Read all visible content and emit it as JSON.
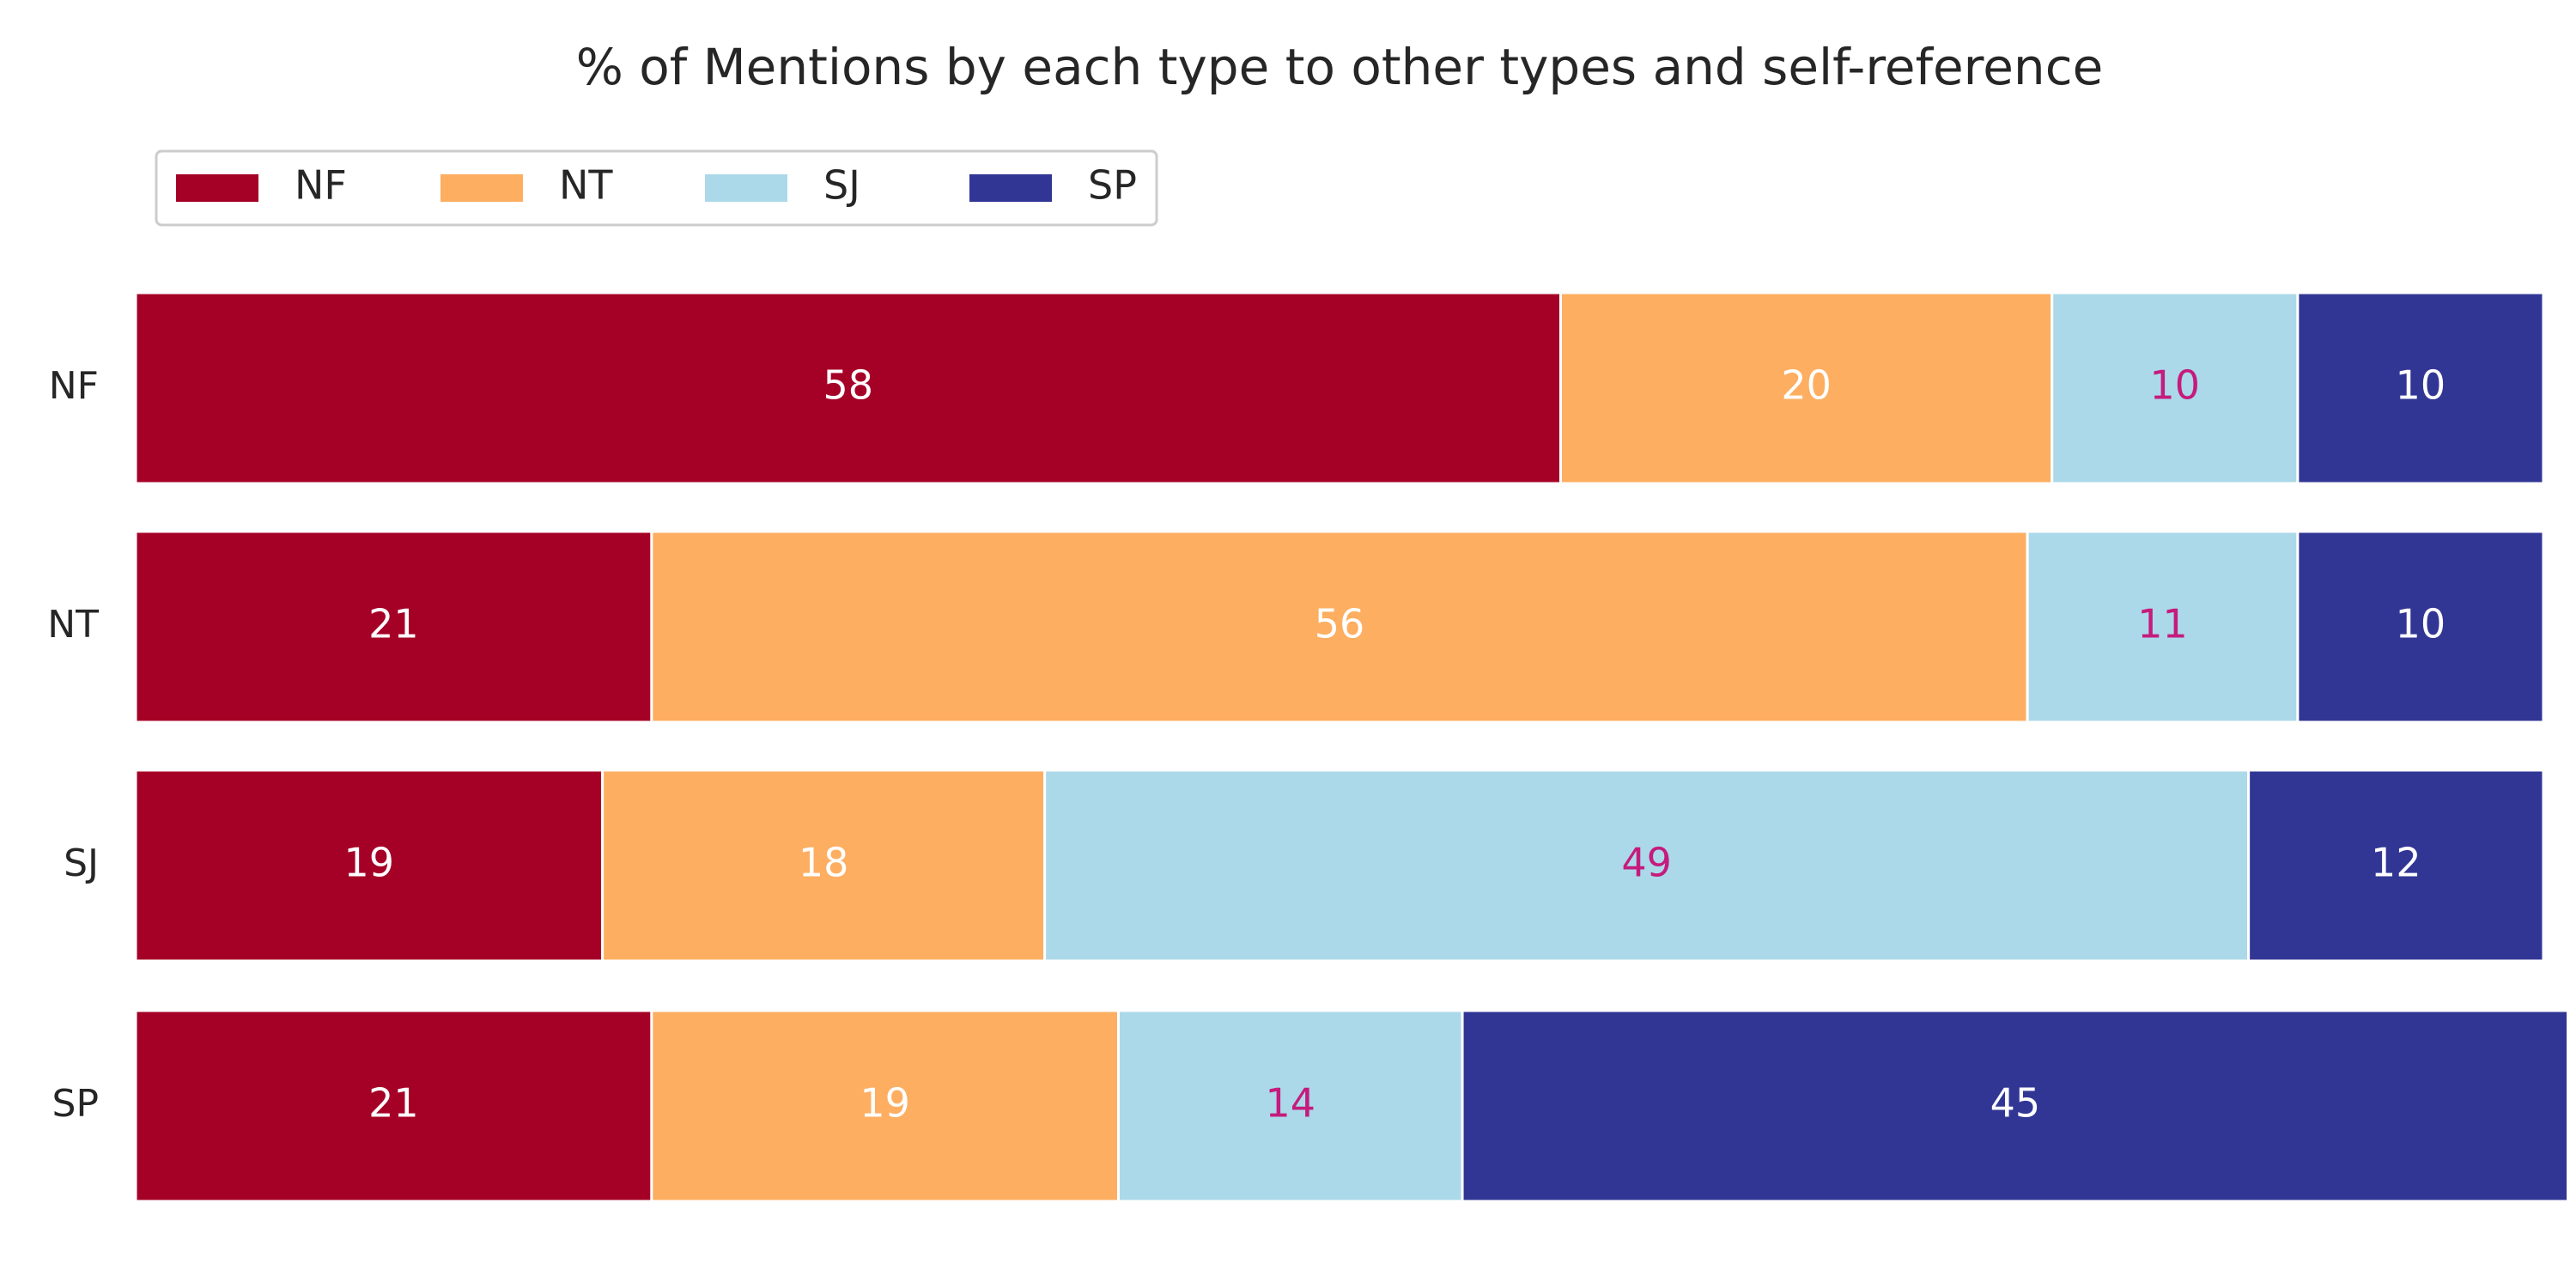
{
  "chart_data": {
    "type": "bar",
    "orientation": "horizontal",
    "stacked": true,
    "title": "% of Mentions by each type to other types and self-reference",
    "xlabel": "",
    "ylabel": "",
    "xlim": [
      0,
      98
    ],
    "grid": false,
    "legend_position": "top-left",
    "categories": [
      "NF",
      "NT",
      "SJ",
      "SP"
    ],
    "series": [
      {
        "name": "NF",
        "color": "#a50026",
        "label_color": "#ffffff",
        "values": [
          58,
          21,
          19,
          21
        ]
      },
      {
        "name": "NT",
        "color": "#fdae61",
        "label_color": "#ffffff",
        "values": [
          20,
          56,
          18,
          19
        ]
      },
      {
        "name": "SJ",
        "color": "#abd9e9",
        "label_color": "#c51b7d",
        "values": [
          10,
          11,
          49,
          14
        ]
      },
      {
        "name": "SP",
        "color": "#313695",
        "label_color": "#ffffff",
        "values": [
          10,
          10,
          12,
          45
        ]
      }
    ]
  }
}
